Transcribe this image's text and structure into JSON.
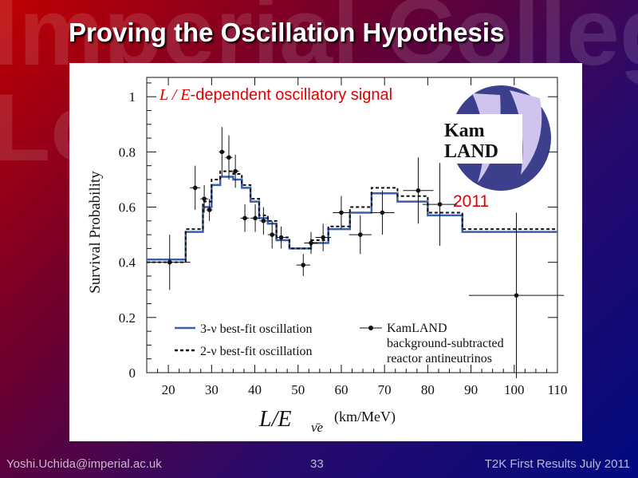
{
  "slide": {
    "title": "Proving the Oscillation Hypothesis",
    "watermark_line1": "Imperial Colleg",
    "watermark_line2": "Lo",
    "footer_left": "Yoshi.Uchida@imperial.ac.uk",
    "footer_center": "33",
    "footer_right": "T2K First Results July 2011"
  },
  "annotation": {
    "prefix": "L / E",
    "text": "-dependent oscillatory signal",
    "year": "2011",
    "color": "#e00000"
  },
  "logo": {
    "line1": "Kam",
    "line2": "LAND",
    "color": "#3b3f8c"
  },
  "chart_data": {
    "type": "line",
    "ylabel": "Survival Probability",
    "xlabel_main": "L/E",
    "xlabel_sub": "ν̄e",
    "xlabel_unit": "(km/MeV)",
    "xlim": [
      15,
      110
    ],
    "ylim": [
      0,
      1.07
    ],
    "xticks": [
      20,
      30,
      40,
      50,
      60,
      70,
      80,
      90,
      100,
      110
    ],
    "yticks": [
      0,
      0.2,
      0.4,
      0.6,
      0.8,
      1
    ],
    "ytick_labels": [
      "0",
      "0.2",
      "0.4",
      "0.6",
      "0.8",
      "1"
    ],
    "legend": {
      "three_nu": "3-ν best-fit oscillation",
      "two_nu": "2-ν best-fit oscillation",
      "data_line1": "KamLAND",
      "data_line2": "background-subtracted",
      "data_line3": "reactor antineutrinos"
    },
    "series": [
      {
        "name": "3-ν best-fit oscillation",
        "style": "solid",
        "color": "#3b5fb0",
        "steps": [
          {
            "x0": 15,
            "x1": 24,
            "y": 0.41
          },
          {
            "x0": 24,
            "x1": 28,
            "y": 0.51
          },
          {
            "x0": 28,
            "x1": 30,
            "y": 0.6
          },
          {
            "x0": 30,
            "x1": 32,
            "y": 0.68
          },
          {
            "x0": 32,
            "x1": 35,
            "y": 0.71
          },
          {
            "x0": 35,
            "x1": 37,
            "y": 0.7
          },
          {
            "x0": 37,
            "x1": 39,
            "y": 0.67
          },
          {
            "x0": 39,
            "x1": 41,
            "y": 0.62
          },
          {
            "x0": 41,
            "x1": 43,
            "y": 0.56
          },
          {
            "x0": 43,
            "x1": 45,
            "y": 0.54
          },
          {
            "x0": 45,
            "x1": 48,
            "y": 0.48
          },
          {
            "x0": 48,
            "x1": 53,
            "y": 0.45
          },
          {
            "x0": 53,
            "x1": 57,
            "y": 0.47
          },
          {
            "x0": 57,
            "x1": 62,
            "y": 0.52
          },
          {
            "x0": 62,
            "x1": 67,
            "y": 0.58
          },
          {
            "x0": 67,
            "x1": 73,
            "y": 0.65
          },
          {
            "x0": 73,
            "x1": 80,
            "y": 0.62
          },
          {
            "x0": 80,
            "x1": 88,
            "y": 0.57
          },
          {
            "x0": 88,
            "x1": 110,
            "y": 0.51
          }
        ]
      },
      {
        "name": "2-ν best-fit oscillation",
        "style": "dashed",
        "color": "#111111",
        "steps": [
          {
            "x0": 15,
            "x1": 24,
            "y": 0.4
          },
          {
            "x0": 24,
            "x1": 28,
            "y": 0.52
          },
          {
            "x0": 28,
            "x1": 30,
            "y": 0.62
          },
          {
            "x0": 30,
            "x1": 32,
            "y": 0.7
          },
          {
            "x0": 32,
            "x1": 35,
            "y": 0.73
          },
          {
            "x0": 35,
            "x1": 37,
            "y": 0.72
          },
          {
            "x0": 37,
            "x1": 39,
            "y": 0.68
          },
          {
            "x0": 39,
            "x1": 41,
            "y": 0.63
          },
          {
            "x0": 41,
            "x1": 43,
            "y": 0.57
          },
          {
            "x0": 43,
            "x1": 45,
            "y": 0.55
          },
          {
            "x0": 45,
            "x1": 48,
            "y": 0.49
          },
          {
            "x0": 48,
            "x1": 53,
            "y": 0.45
          },
          {
            "x0": 53,
            "x1": 57,
            "y": 0.48
          },
          {
            "x0": 57,
            "x1": 62,
            "y": 0.53
          },
          {
            "x0": 62,
            "x1": 67,
            "y": 0.6
          },
          {
            "x0": 67,
            "x1": 73,
            "y": 0.67
          },
          {
            "x0": 73,
            "x1": 80,
            "y": 0.64
          },
          {
            "x0": 80,
            "x1": 88,
            "y": 0.58
          },
          {
            "x0": 88,
            "x1": 110,
            "y": 0.52
          }
        ]
      },
      {
        "name": "KamLAND background-subtracted reactor antineutrinos",
        "style": "points",
        "color": "#111111",
        "points": [
          {
            "x": 20.3,
            "y": 0.4,
            "xerr": 4.8,
            "yerr": 0.1
          },
          {
            "x": 26.2,
            "y": 0.67,
            "xerr": 1.2,
            "yerr": 0.08
          },
          {
            "x": 28.3,
            "y": 0.63,
            "xerr": 0.9,
            "yerr": 0.05
          },
          {
            "x": 29.5,
            "y": 0.59,
            "xerr": 0.7,
            "yerr": 0.04
          },
          {
            "x": 32.4,
            "y": 0.8,
            "xerr": 0.7,
            "yerr": 0.09
          },
          {
            "x": 34.0,
            "y": 0.78,
            "xerr": 0.8,
            "yerr": 0.08
          },
          {
            "x": 35.5,
            "y": 0.73,
            "xerr": 0.8,
            "yerr": 0.06
          },
          {
            "x": 37.7,
            "y": 0.56,
            "xerr": 1.0,
            "yerr": 0.05
          },
          {
            "x": 40.1,
            "y": 0.56,
            "xerr": 1.1,
            "yerr": 0.05
          },
          {
            "x": 42.0,
            "y": 0.55,
            "xerr": 0.9,
            "yerr": 0.05
          },
          {
            "x": 44.0,
            "y": 0.5,
            "xerr": 1.0,
            "yerr": 0.05
          },
          {
            "x": 46.1,
            "y": 0.49,
            "xerr": 1.1,
            "yerr": 0.04
          },
          {
            "x": 51.2,
            "y": 0.39,
            "xerr": 1.6,
            "yerr": 0.04
          },
          {
            "x": 53.0,
            "y": 0.47,
            "xerr": 1.6,
            "yerr": 0.04
          },
          {
            "x": 55.8,
            "y": 0.49,
            "xerr": 1.8,
            "yerr": 0.05
          },
          {
            "x": 60.0,
            "y": 0.58,
            "xerr": 2.0,
            "yerr": 0.06
          },
          {
            "x": 64.4,
            "y": 0.5,
            "xerr": 2.6,
            "yerr": 0.07
          },
          {
            "x": 69.5,
            "y": 0.58,
            "xerr": 2.8,
            "yerr": 0.08
          },
          {
            "x": 77.8,
            "y": 0.66,
            "xerr": 3.5,
            "yerr": 0.12
          },
          {
            "x": 82.8,
            "y": 0.61,
            "xerr": 4.0,
            "yerr": 0.15
          },
          {
            "x": 100.5,
            "y": 0.28,
            "xerr": 11.0,
            "yerr": 0.3
          }
        ]
      }
    ]
  }
}
